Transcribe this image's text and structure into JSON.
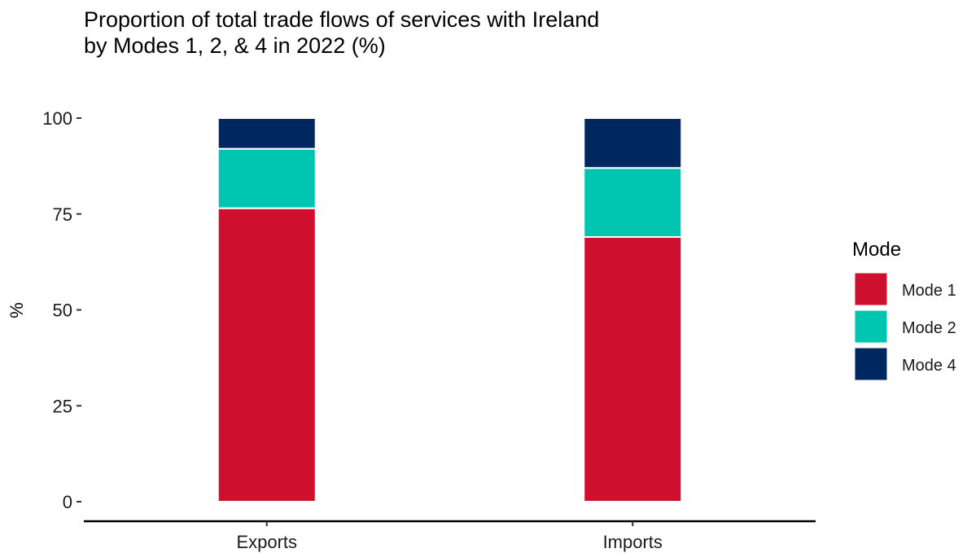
{
  "chart_data": {
    "type": "bar",
    "stacked": true,
    "title": "Proportion of total trade flows of services with Ireland\nby Modes 1, 2, & 4 in 2022 (%)",
    "xlabel": "",
    "ylabel": "%",
    "ylim": [
      0,
      100
    ],
    "yticks": [
      0,
      25,
      50,
      75,
      100
    ],
    "categories": [
      "Exports",
      "Imports"
    ],
    "series": [
      {
        "name": "Mode 1",
        "color": "#CE0F2D",
        "values": [
          76.5,
          69.0
        ]
      },
      {
        "name": "Mode 2",
        "color": "#00C5B0",
        "values": [
          15.5,
          18.0
        ]
      },
      {
        "name": "Mode 4",
        "color": "#002860",
        "values": [
          8.0,
          13.0
        ]
      }
    ],
    "legend": {
      "title": "Mode",
      "position": "right"
    },
    "grid": false
  }
}
